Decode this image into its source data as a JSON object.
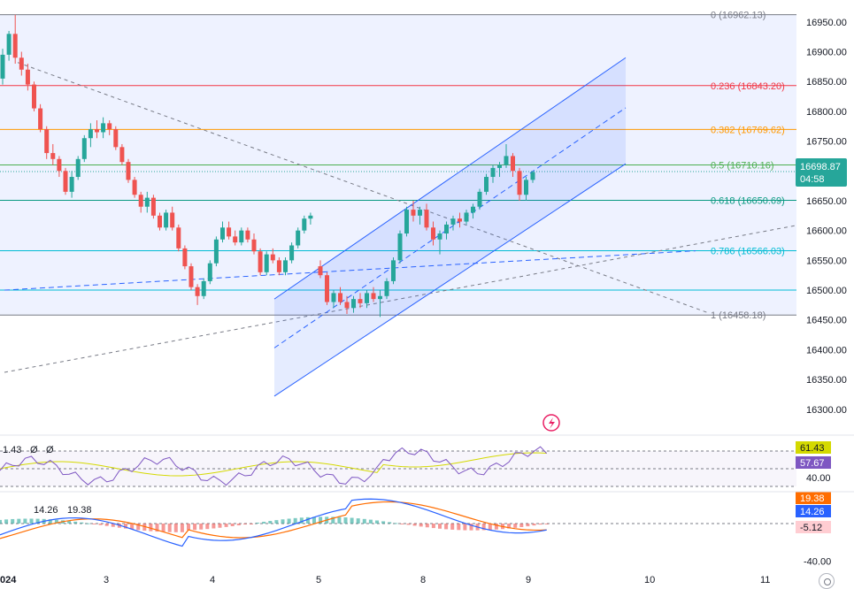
{
  "colors": {
    "up": "#26a69a",
    "down": "#ef5350",
    "fib_zone": "#eef2ff",
    "channel": "#2962ff",
    "rsi": "#7e57c2",
    "rsi_ma": "#d4d900",
    "macd": "#2962ff",
    "signal": "#ff6d00"
  },
  "chart_data": [
    {
      "type": "candlestick",
      "name": "price",
      "x_ticks": [
        "024",
        "3",
        "4",
        "5",
        "8",
        "9",
        "10",
        "11"
      ],
      "y_ticks": [
        "16950.00",
        "16900.00",
        "16850.00",
        "16800.00",
        "16750.00",
        "16700.00",
        "16650.00",
        "16600.00",
        "16550.00",
        "16500.00",
        "16450.00",
        "16400.00",
        "16350.00",
        "16300.00"
      ],
      "ylim": [
        16270,
        16975
      ],
      "last_price": "16698.87",
      "countdown": "04:58",
      "fib_levels": [
        {
          "ratio": "0",
          "value": 16962.13,
          "label": "0 (16962.13)",
          "color": "#787b86"
        },
        {
          "ratio": "0.236",
          "value": 16843.2,
          "label": "0.236 (16843.20)",
          "color": "#f23645"
        },
        {
          "ratio": "0.382",
          "value": 16769.62,
          "label": "0.382 (16769.62)",
          "color": "#ff9800"
        },
        {
          "ratio": "0.5",
          "value": 16710.16,
          "label": "0.5 (16710.16)",
          "color": "#4caf50"
        },
        {
          "ratio": "0.618",
          "value": 16650.69,
          "label": "0.618 (16650.69)",
          "color": "#089981"
        },
        {
          "ratio": "0.786",
          "value": 16566.03,
          "label": "0.786 (16566.03)",
          "color": "#00bcd4"
        },
        {
          "ratio": "1",
          "value": 16458.18,
          "label": "1 (16458.18)",
          "color": "#787b86"
        }
      ],
      "extra_level": 16500,
      "channel": {
        "upper": [
          [
            16485,
            16890
          ],
          [
            16485,
            16890
          ]
        ],
        "lower_start": 16322,
        "lower_end": 16712,
        "upper_start": 16485,
        "upper_end": 16890,
        "mid_start": 16403,
        "mid_end": 16806
      },
      "candles": [
        [
          16855,
          16905,
          16845,
          16895
        ],
        [
          16895,
          16935,
          16885,
          16930
        ],
        [
          16930,
          16962,
          16880,
          16890
        ],
        [
          16890,
          16900,
          16860,
          16870
        ],
        [
          16870,
          16880,
          16835,
          16845
        ],
        [
          16845,
          16850,
          16800,
          16805
        ],
        [
          16805,
          16812,
          16765,
          16770
        ],
        [
          16770,
          16775,
          16720,
          16730
        ],
        [
          16730,
          16745,
          16710,
          16720
        ],
        [
          16720,
          16725,
          16690,
          16700
        ],
        [
          16700,
          16705,
          16660,
          16665
        ],
        [
          16665,
          16700,
          16655,
          16690
        ],
        [
          16690,
          16725,
          16685,
          16720
        ],
        [
          16720,
          16760,
          16715,
          16755
        ],
        [
          16755,
          16780,
          16740,
          16770
        ],
        [
          16770,
          16785,
          16755,
          16765
        ],
        [
          16765,
          16790,
          16755,
          16780
        ],
        [
          16780,
          16785,
          16760,
          16770
        ],
        [
          16770,
          16775,
          16735,
          16740
        ],
        [
          16740,
          16745,
          16710,
          16715
        ],
        [
          16715,
          16720,
          16680,
          16685
        ],
        [
          16685,
          16690,
          16655,
          16660
        ],
        [
          16660,
          16665,
          16630,
          16640
        ],
        [
          16640,
          16665,
          16630,
          16655
        ],
        [
          16655,
          16660,
          16620,
          16625
        ],
        [
          16625,
          16630,
          16600,
          16605
        ],
        [
          16605,
          16635,
          16600,
          16630
        ],
        [
          16630,
          16640,
          16600,
          16605
        ],
        [
          16605,
          16610,
          16565,
          16570
        ],
        [
          16570,
          16575,
          16535,
          16540
        ],
        [
          16540,
          16545,
          16500,
          16505
        ],
        [
          16505,
          16510,
          16475,
          16490
        ],
        [
          16490,
          16520,
          16485,
          16515
        ],
        [
          16515,
          16550,
          16510,
          16545
        ],
        [
          16545,
          16590,
          16540,
          16585
        ],
        [
          16585,
          16615,
          16580,
          16605
        ],
        [
          16605,
          16615,
          16585,
          16590
        ],
        [
          16590,
          16600,
          16575,
          16580
        ],
        [
          16580,
          16605,
          16575,
          16600
        ],
        [
          16600,
          16605,
          16580,
          16585
        ],
        [
          16585,
          16595,
          16560,
          16565
        ],
        [
          16565,
          16570,
          16525,
          16530
        ],
        [
          16530,
          16565,
          16525,
          16560
        ],
        [
          16560,
          16570,
          16545,
          16550
        ],
        [
          16550,
          16555,
          16525,
          16530
        ],
        [
          16530,
          16555,
          16525,
          16550
        ],
        [
          16550,
          16580,
          16545,
          16575
        ],
        [
          16575,
          16605,
          16570,
          16600
        ],
        [
          16600,
          16625,
          16595,
          16620
        ],
        [
          16620,
          16630,
          16610,
          16625
        ],
        [
          16540,
          16550,
          16520,
          16525
        ],
        [
          16525,
          16530,
          16475,
          16480
        ],
        [
          16480,
          16500,
          16470,
          16495
        ],
        [
          16495,
          16505,
          16475,
          16480
        ],
        [
          16480,
          16490,
          16460,
          16470
        ],
        [
          16470,
          16490,
          16462,
          16485
        ],
        [
          16485,
          16495,
          16470,
          16478
        ],
        [
          16478,
          16500,
          16470,
          16495
        ],
        [
          16495,
          16505,
          16480,
          16485
        ],
        [
          16485,
          16500,
          16455,
          16490
        ],
        [
          16490,
          16520,
          16485,
          16515
        ],
        [
          16515,
          16555,
          16510,
          16550
        ],
        [
          16550,
          16600,
          16545,
          16595
        ],
        [
          16595,
          16640,
          16590,
          16635
        ],
        [
          16635,
          16650,
          16615,
          16625
        ],
        [
          16625,
          16640,
          16610,
          16635
        ],
        [
          16635,
          16645,
          16600,
          16605
        ],
        [
          16605,
          16615,
          16575,
          16585
        ],
        [
          16585,
          16600,
          16560,
          16595
        ],
        [
          16595,
          16615,
          16585,
          16610
        ],
        [
          16610,
          16625,
          16600,
          16620
        ],
        [
          16620,
          16630,
          16605,
          16615
        ],
        [
          16615,
          16635,
          16610,
          16630
        ],
        [
          16630,
          16645,
          16620,
          16640
        ],
        [
          16640,
          16670,
          16635,
          16665
        ],
        [
          16665,
          16695,
          16660,
          16690
        ],
        [
          16690,
          16710,
          16680,
          16705
        ],
        [
          16705,
          16715,
          16690,
          16710
        ],
        [
          16710,
          16745,
          16705,
          16725
        ],
        [
          16725,
          16730,
          16690,
          16700
        ],
        [
          16700,
          16705,
          16650,
          16660
        ],
        [
          16660,
          16690,
          16650,
          16685
        ],
        [
          16685,
          16700,
          16680,
          16698
        ]
      ]
    },
    {
      "type": "line",
      "name": "RSI",
      "y_ticks": [
        "40.00"
      ],
      "badges": [
        "61.43",
        "57.67"
      ],
      "header_text": "1.43",
      "ylim": [
        30,
        80
      ]
    },
    {
      "type": "macd",
      "name": "MACD",
      "y_ticks": [
        "-40.00"
      ],
      "header": [
        "14.26",
        "19.38"
      ],
      "badges": [
        "19.38",
        "14.26",
        "-5.12"
      ],
      "ylim": [
        -45,
        30
      ]
    }
  ]
}
